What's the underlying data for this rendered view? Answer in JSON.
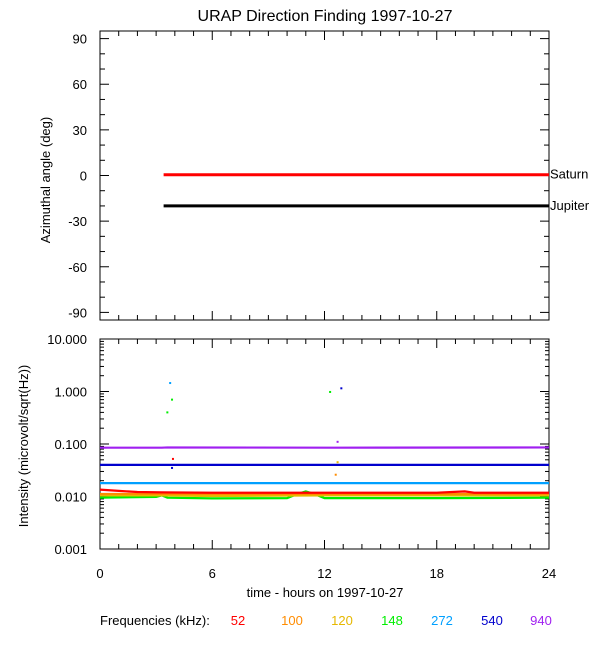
{
  "title": "URAP Direction Finding  1997-10-27",
  "chart_data": [
    {
      "type": "line",
      "panel": "direction",
      "ylabel": "Azimuthal angle (deg)",
      "ylim": [
        -95,
        95
      ],
      "yticks": [
        90,
        60,
        30,
        0,
        -30,
        -60,
        -90
      ],
      "xlim": [
        0,
        24
      ],
      "series": [
        {
          "name": "Saturn",
          "color": "#ff0000",
          "x": [
            3.4,
            24
          ],
          "y": [
            0.5,
            0.5
          ]
        },
        {
          "name": "Jupiter",
          "color": "#000000",
          "x": [
            3.4,
            24
          ],
          "y": [
            -20,
            -20
          ]
        }
      ]
    },
    {
      "type": "scatter",
      "panel": "intensity",
      "ylabel": "Intensity (microvolt/sqrt(Hz))",
      "yscale": "log",
      "ylim": [
        0.001,
        10
      ],
      "yticks": [
        "10.000",
        "1.000",
        "0.100",
        "0.010",
        "0.001"
      ],
      "ytick_values": [
        10,
        1,
        0.1,
        0.01,
        0.001
      ],
      "xlabel": "time - hours on 1997-10-27",
      "xlim": [
        0,
        24
      ],
      "xticks": [
        "0",
        "6",
        "12",
        "18",
        "24"
      ],
      "xtick_values": [
        0,
        6,
        12,
        18,
        24
      ],
      "series": [
        {
          "name": "940",
          "color": "#a020f0",
          "x": [
            0,
            3.3,
            3.6,
            12.5,
            24
          ],
          "y": [
            0.085,
            0.085,
            0.086,
            0.085,
            0.086
          ],
          "outliers": [
            {
              "x": 12.7,
              "y": 0.11
            }
          ]
        },
        {
          "name": "540",
          "color": "#0000cd",
          "x": [
            0,
            3.3,
            3.6,
            24
          ],
          "y": [
            0.04,
            0.04,
            0.04,
            0.04
          ],
          "outliers": [
            {
              "x": 12.9,
              "y": 1.15
            },
            {
              "x": 3.85,
              "y": 0.035
            }
          ]
        },
        {
          "name": "272",
          "color": "#00a0ff",
          "x": [
            0,
            24
          ],
          "y": [
            0.018,
            0.018
          ],
          "outliers": [
            {
              "x": 3.75,
              "y": 1.45
            }
          ]
        },
        {
          "name": "148",
          "color": "#00ee00",
          "x": [
            0,
            3.0,
            3.3,
            3.6,
            6,
            10,
            10.5,
            11,
            11.5,
            12,
            18,
            24
          ],
          "y": [
            0.0095,
            0.0098,
            0.0105,
            0.0095,
            0.0092,
            0.0093,
            0.011,
            0.0125,
            0.011,
            0.0093,
            0.0093,
            0.0095
          ],
          "outliers": [
            {
              "x": 3.6,
              "y": 0.4
            },
            {
              "x": 3.85,
              "y": 0.7
            },
            {
              "x": 12.3,
              "y": 0.98
            }
          ]
        },
        {
          "name": "120",
          "color": "#e6b800",
          "x": [
            0,
            3.3,
            6,
            12,
            24
          ],
          "y": [
            0.0105,
            0.0105,
            0.0102,
            0.0105,
            0.0105
          ],
          "outliers": [
            {
              "x": 12.7,
              "y": 0.045
            }
          ]
        },
        {
          "name": "100",
          "color": "#ff8c00",
          "x": [
            0,
            24
          ],
          "y": [
            0.0112,
            0.0112
          ],
          "outliers": [
            {
              "x": 12.6,
              "y": 0.026
            }
          ]
        },
        {
          "name": "52",
          "color": "#ff0000",
          "x": [
            0,
            1,
            2,
            3.3,
            6,
            12,
            18,
            19.5,
            20,
            24
          ],
          "y": [
            0.0135,
            0.0128,
            0.0122,
            0.012,
            0.0118,
            0.0118,
            0.0118,
            0.0125,
            0.0118,
            0.0118
          ],
          "outliers": [
            {
              "x": 3.9,
              "y": 0.052
            }
          ]
        }
      ]
    }
  ],
  "legend": {
    "label": "Frequencies (kHz):",
    "items": [
      {
        "label": "52",
        "color": "#ff0000"
      },
      {
        "label": "100",
        "color": "#ff8c00"
      },
      {
        "label": "120",
        "color": "#e6b800"
      },
      {
        "label": "148",
        "color": "#00ee00"
      },
      {
        "label": "272",
        "color": "#00a0ff"
      },
      {
        "label": "540",
        "color": "#0000cd"
      },
      {
        "label": "940",
        "color": "#a020f0"
      }
    ]
  }
}
